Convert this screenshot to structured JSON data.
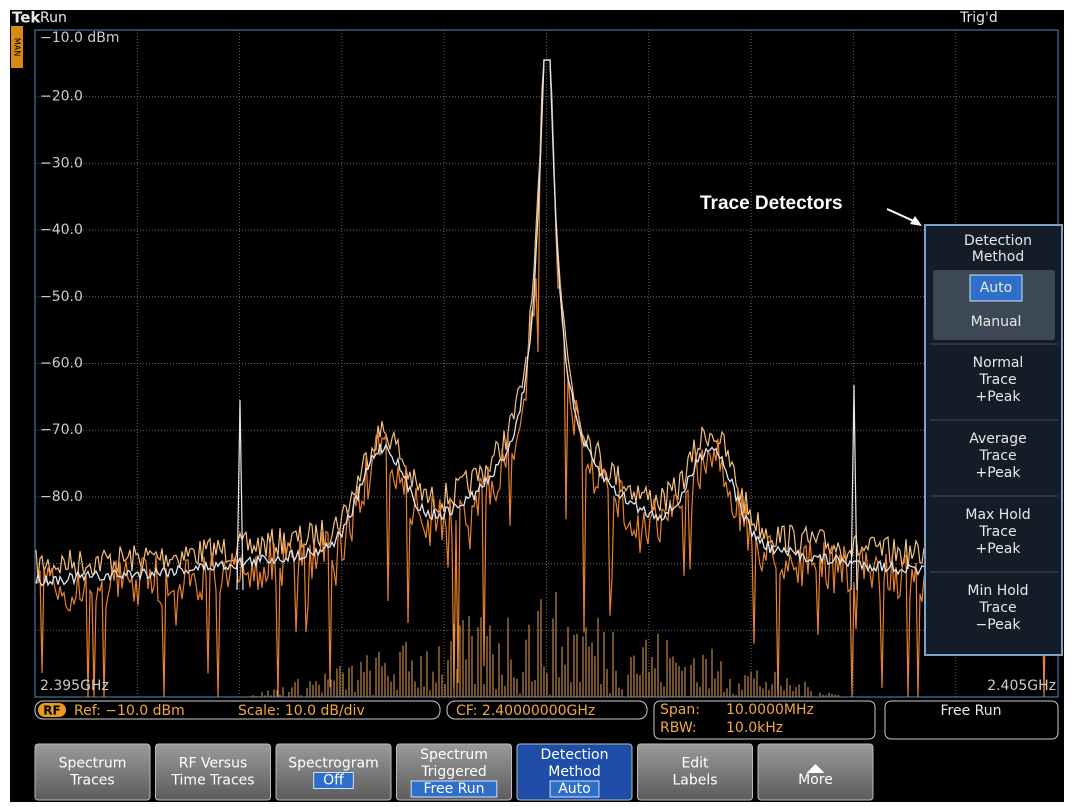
{
  "header": {
    "brand": "Tek",
    "state": "Run",
    "trigger": "Trig'd",
    "mode_indicator": "MAN"
  },
  "graticule": {
    "y_labels": [
      "−10.0 dBm",
      "−20.0",
      "−30.0",
      "−40.0",
      "−50.0",
      "−60.0",
      "−70.0",
      "−80.0"
    ],
    "x_start": "2.395GHz",
    "x_end": "2.405GHz"
  },
  "status_bar": {
    "source": "RF",
    "ref": "Ref: −10.0 dBm",
    "scale": "Scale: 10.0 dB/div",
    "cf": "CF: 2.40000000GHz",
    "span_label": "Span:",
    "span": "10.0000MHz",
    "rbw_label": "RBW:",
    "rbw": "10.0kHz",
    "trigger_mode": "Free Run"
  },
  "annotation": "Trace Detectors",
  "side_menu": {
    "title": [
      "Detection",
      "Method"
    ],
    "choices": [
      "Auto",
      "Manual"
    ],
    "items": [
      [
        "Normal",
        "Trace",
        "+Peak"
      ],
      [
        "Average",
        "Trace",
        "+Peak"
      ],
      [
        "Max Hold",
        "Trace",
        "+Peak"
      ],
      [
        "Min Hold",
        "Trace",
        "−Peak"
      ]
    ]
  },
  "bottom_menu": [
    {
      "lines": [
        "Spectrum",
        "Traces"
      ]
    },
    {
      "lines": [
        "RF Versus",
        "Time Traces"
      ]
    },
    {
      "lines": [
        "Spectrogram"
      ],
      "value": "Off"
    },
    {
      "lines": [
        "Spectrum",
        "Triggered"
      ],
      "value": "Free Run"
    },
    {
      "lines": [
        "Detection",
        "Method"
      ],
      "value": "Auto"
    },
    {
      "lines": [
        "Edit",
        "Labels"
      ]
    },
    {
      "lines": [
        "More"
      ]
    }
  ]
}
